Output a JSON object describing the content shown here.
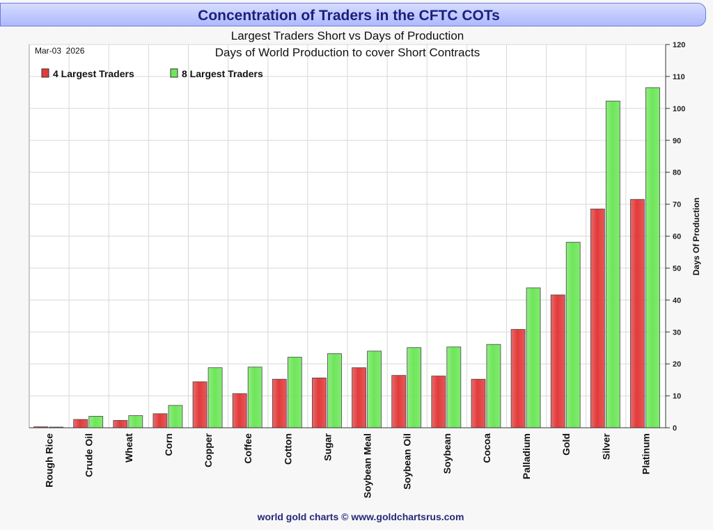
{
  "chart_data": {
    "type": "bar",
    "title": "Concentration of Traders in the CFTC COTs",
    "subtitle": "Largest Traders Short vs Days of Production",
    "subtitle2": "Days of World Production to cover Short Contracts",
    "date": "Mar-03  2026",
    "ylabel": "Days Of Production",
    "xlabel": "",
    "ylim": [
      0,
      120
    ],
    "yticks": [
      0,
      10,
      20,
      30,
      40,
      50,
      60,
      70,
      80,
      90,
      100,
      110,
      120
    ],
    "grid": true,
    "legend_position": "top-left",
    "categories": [
      "Rough Rice",
      "Crude Oil",
      "Wheat",
      "Corn",
      "Copper",
      "Coffee",
      "Cotton",
      "Sugar",
      "Soybean Meal",
      "Soybean Oil",
      "Soybean",
      "Cocoa",
      "Palladium",
      "Gold",
      "Silver",
      "Platinum"
    ],
    "series": [
      {
        "name": "4 Largest Traders",
        "color": "#e23b3b",
        "values": [
          0.3,
          2.6,
          2.3,
          4.4,
          14.4,
          10.7,
          15.2,
          15.6,
          18.8,
          16.4,
          16.2,
          15.2,
          30.8,
          41.6,
          68.5,
          71.5
        ]
      },
      {
        "name": "8 Largest Traders",
        "color": "#6ee65a",
        "values": [
          0.2,
          3.6,
          3.8,
          7.0,
          18.8,
          19.0,
          22.1,
          23.2,
          24.0,
          25.1,
          25.3,
          26.1,
          43.8,
          58.1,
          102.3,
          106.5
        ]
      }
    ],
    "footer": "world gold charts © www.goldchartsrus.com"
  }
}
